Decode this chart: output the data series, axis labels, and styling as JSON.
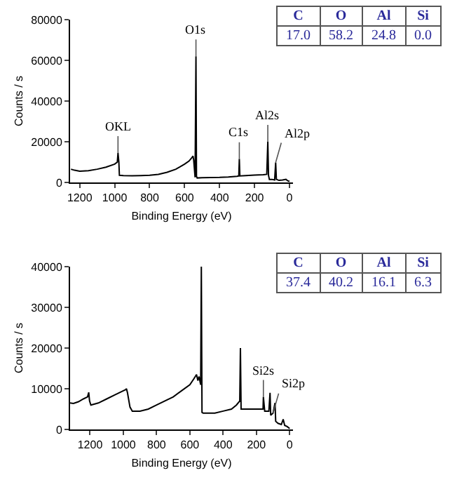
{
  "chart_data": [
    {
      "type": "line",
      "xlabel": "Binding Energy (eV)",
      "ylabel": "Counts / s",
      "xlim": [
        1255,
        -20
      ],
      "ylim": [
        0,
        80000
      ],
      "xticks": [
        1200,
        1000,
        800,
        600,
        400,
        200,
        0
      ],
      "yticks": [
        0,
        20000,
        40000,
        60000,
        80000
      ],
      "grid": false,
      "legend": false,
      "marker": "none",
      "line_style": "solid",
      "series": [
        {
          "color": "#000000",
          "x": [
            1250,
            1230,
            1200,
            1150,
            1100,
            1050,
            1000,
            985,
            981,
            976,
            973,
            950,
            900,
            850,
            800,
            750,
            700,
            650,
            600,
            575,
            560,
            552,
            548,
            540,
            535,
            532,
            528,
            500,
            450,
            400,
            350,
            300,
            290,
            287,
            284,
            250,
            200,
            150,
            130,
            124,
            120,
            115,
            100,
            85,
            79,
            75,
            60,
            40,
            20,
            10,
            0
          ],
          "values": [
            6500,
            6000,
            5500,
            5800,
            6500,
            7500,
            9000,
            10000,
            14500,
            10000,
            3500,
            3400,
            3300,
            3400,
            3500,
            4000,
            5000,
            6500,
            9000,
            10500,
            12000,
            13000,
            11000,
            2500,
            62000,
            3000,
            2200,
            2300,
            2400,
            2500,
            2700,
            3000,
            3200,
            11500,
            3200,
            3400,
            3600,
            3800,
            4000,
            20000,
            3500,
            1500,
            1500,
            1200,
            9800,
            1500,
            1000,
            1200,
            1500,
            800,
            500
          ]
        }
      ],
      "annotations": [
        {
          "text": "OKL",
          "x": 981,
          "y": 14500
        },
        {
          "text": "O1s",
          "x": 535,
          "y": 62000
        },
        {
          "text": "C1s",
          "x": 287,
          "y": 11500
        },
        {
          "text": "Al2s",
          "x": 124,
          "y": 20000
        },
        {
          "text": "Al2p",
          "x": 79,
          "y": 9800
        },
        "C",
        "O",
        "Al",
        "Si",
        "17.0",
        "58.2",
        "24.8",
        "0.0"
      ]
    },
    {
      "type": "line",
      "xlabel": "Binding Energy (eV)",
      "ylabel": "Counts / s",
      "xlim": [
        1320,
        -20
      ],
      "ylim": [
        0,
        40000
      ],
      "xticks": [
        1200,
        1000,
        800,
        600,
        400,
        200,
        0
      ],
      "yticks": [
        0,
        10000,
        20000,
        30000,
        40000
      ],
      "grid": false,
      "legend": false,
      "marker": "none",
      "line_style": "solid",
      "series": [
        {
          "color": "#000000",
          "x": [
            1320,
            1300,
            1270,
            1240,
            1215,
            1208,
            1203,
            1195,
            1150,
            1100,
            1050,
            1000,
            985,
            981,
            975,
            960,
            946,
            900,
            850,
            800,
            750,
            700,
            650,
            600,
            575,
            560,
            552,
            545,
            535,
            531,
            527,
            520,
            450,
            400,
            350,
            320,
            300,
            296,
            292,
            250,
            200,
            160,
            158,
            150,
            125,
            118,
            114,
            100,
            88,
            84,
            70,
            50,
            39,
            30,
            15,
            0
          ],
          "values": [
            6500,
            6400,
            6800,
            7500,
            8000,
            9100,
            7000,
            6000,
            6500,
            7500,
            8500,
            9500,
            9800,
            10000,
            9000,
            5500,
            4500,
            4500,
            5000,
            6000,
            7000,
            8000,
            9500,
            11000,
            12500,
            13500,
            12000,
            13000,
            11000,
            40000,
            4200,
            4000,
            4000,
            4500,
            5000,
            6000,
            7000,
            20000,
            5000,
            5000,
            5000,
            5000,
            8000,
            4500,
            4500,
            9000,
            3500,
            4000,
            6500,
            2000,
            1500,
            1200,
            2500,
            1000,
            700,
            200
          ]
        }
      ],
      "annotations": [
        {
          "text": "Si2s",
          "x": 158,
          "y": 8000
        },
        {
          "text": "Si2p",
          "x": 100,
          "y": 4000
        },
        "C",
        "O",
        "Al",
        "Si",
        "37.4",
        "40.2",
        "16.1",
        "6.3"
      ]
    }
  ]
}
